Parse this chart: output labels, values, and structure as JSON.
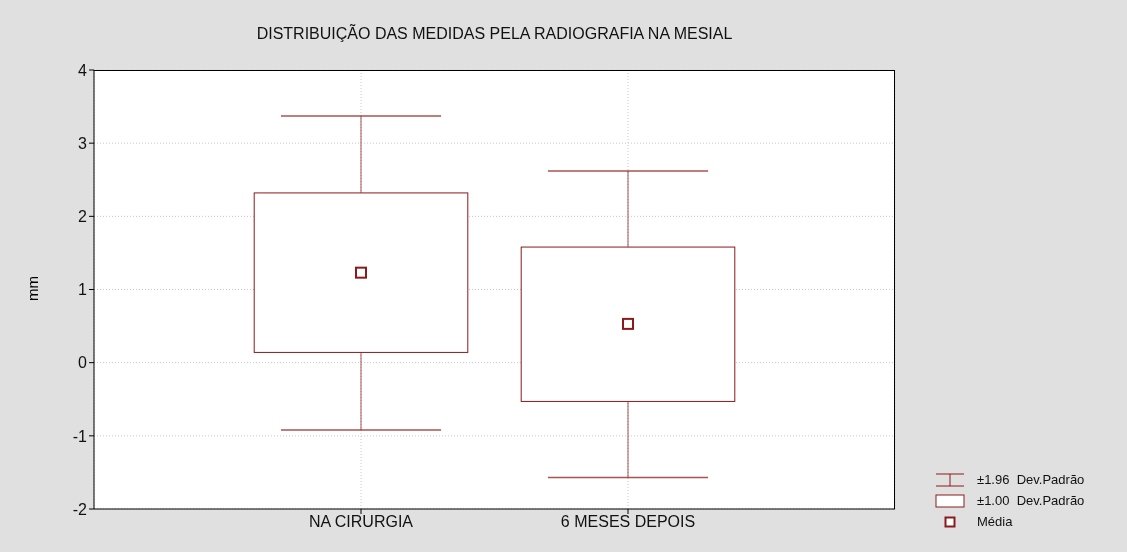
{
  "chart_data": {
    "type": "box",
    "title": "DISTRIBUIÇÃO DAS MEDIDAS PELA RADIOGRAFIA NA MESIAL",
    "ylabel": "mm",
    "categories": [
      "NA CIRURGIA",
      "6 MESES DEPOIS"
    ],
    "boxes": [
      {
        "low": -0.92,
        "q1": 0.14,
        "q3": 2.32,
        "high": 3.37,
        "mean": 1.23
      },
      {
        "low": -1.57,
        "q1": -0.53,
        "q3": 1.58,
        "high": 2.62,
        "mean": 0.53
      }
    ],
    "color": "#8b1a1a",
    "marker": "square",
    "ylim": [
      -2,
      4
    ],
    "yticks": [
      -2,
      -1,
      0,
      1,
      2,
      3,
      4
    ],
    "grid": true,
    "annotations": [
      "±1.96  Dev.Padrão",
      "±1.00  Dev.Padrão",
      "Média"
    ]
  }
}
